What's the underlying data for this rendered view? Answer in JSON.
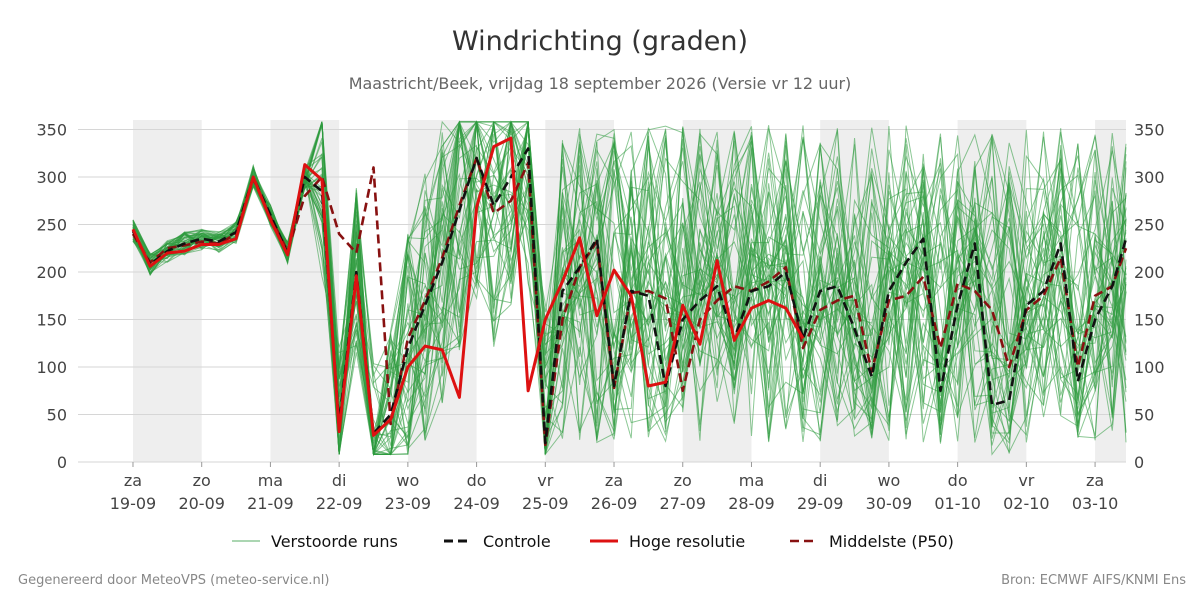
{
  "chart_data": {
    "type": "line",
    "title": "Windrichting (graden)",
    "subtitle": "Maastricht/Beek, vrijdag 18 september 2026 (Versie vr 12 uur)",
    "ylim": [
      0,
      360
    ],
    "yticks": [
      0,
      50,
      100,
      150,
      200,
      250,
      300,
      350
    ],
    "x_range": [
      -0.8,
      14.45
    ],
    "day_labels": [
      {
        "day": "za",
        "date": "19-09"
      },
      {
        "day": "zo",
        "date": "20-09"
      },
      {
        "day": "ma",
        "date": "21-09"
      },
      {
        "day": "di",
        "date": "22-09"
      },
      {
        "day": "wo",
        "date": "23-09"
      },
      {
        "day": "do",
        "date": "24-09"
      },
      {
        "day": "vr",
        "date": "25-09"
      },
      {
        "day": "za",
        "date": "26-09"
      },
      {
        "day": "zo",
        "date": "27-09"
      },
      {
        "day": "ma",
        "date": "28-09"
      },
      {
        "day": "di",
        "date": "29-09"
      },
      {
        "day": "wo",
        "date": "30-09"
      },
      {
        "day": "do",
        "date": "01-10"
      },
      {
        "day": "vr",
        "date": "02-10"
      },
      {
        "day": "za",
        "date": "03-10"
      }
    ],
    "shaded_days": [
      0,
      2,
      4,
      6,
      8,
      10,
      12,
      14
    ],
    "grid": true,
    "legend_position": "bottom",
    "series": [
      {
        "name": "Controle",
        "color": "#111111",
        "dash": "dashed",
        "x": [
          0,
          0.25,
          0.5,
          0.75,
          1,
          1.25,
          1.5,
          1.75,
          2,
          2.25,
          2.5,
          2.75,
          3,
          3.25,
          3.5,
          3.75,
          4,
          4.25,
          4.5,
          4.75,
          5,
          5.25,
          5.5,
          5.75,
          6,
          6.25,
          6.5,
          6.75,
          7,
          7.25,
          7.5,
          7.75,
          8,
          8.25,
          8.5,
          8.75,
          9,
          9.25,
          9.5,
          9.75,
          10,
          10.25,
          10.5,
          10.75,
          11,
          11.25,
          11.5,
          11.75,
          12,
          12.25,
          12.5,
          12.75,
          13,
          13.25,
          13.5,
          13.75,
          14,
          14.25,
          14.45
        ],
        "values": [
          243,
          208,
          222,
          230,
          235,
          232,
          242,
          300,
          260,
          220,
          300,
          285,
          40,
          200,
          30,
          50,
          120,
          165,
          210,
          265,
          320,
          270,
          300,
          330,
          20,
          180,
          205,
          235,
          80,
          180,
          175,
          80,
          150,
          170,
          185,
          130,
          180,
          185,
          200,
          130,
          180,
          185,
          140,
          90,
          180,
          210,
          235,
          75,
          165,
          230,
          60,
          65,
          165,
          180,
          230,
          85,
          150,
          185,
          235
        ]
      },
      {
        "name": "Hoge resolutie",
        "color": "#dd1111",
        "dash": "solid",
        "x": [
          0,
          0.25,
          0.5,
          0.75,
          1,
          1.25,
          1.5,
          1.75,
          2,
          2.25,
          2.5,
          2.75,
          3,
          3.25,
          3.5,
          3.75,
          4,
          4.25,
          4.5,
          4.75,
          5,
          5.25,
          5.5,
          5.75,
          6,
          6.25,
          6.5,
          6.75,
          7,
          7.25,
          7.5,
          7.75,
          8,
          8.25,
          8.5,
          8.75,
          9,
          9.25,
          9.5,
          9.75
        ],
        "values": [
          245,
          206,
          220,
          222,
          229,
          229,
          235,
          300,
          255,
          218,
          313,
          297,
          32,
          196,
          28,
          45,
          100,
          122,
          118,
          68,
          268,
          332,
          341,
          75,
          150,
          190,
          236,
          154,
          202,
          175,
          80,
          84,
          165,
          124,
          212,
          128,
          162,
          170,
          162,
          130
        ]
      },
      {
        "name": "Middelste (P50)",
        "color": "#881111",
        "dash": "dashed",
        "x": [
          0,
          0.25,
          0.5,
          0.75,
          1,
          1.25,
          1.5,
          1.75,
          2,
          2.25,
          2.5,
          2.75,
          3,
          3.25,
          3.5,
          3.75,
          4,
          4.25,
          4.5,
          4.75,
          5,
          5.25,
          5.5,
          5.75,
          6,
          6.25,
          6.5,
          6.75,
          7,
          7.25,
          7.5,
          7.75,
          8,
          8.25,
          8.5,
          8.75,
          9,
          9.25,
          9.5,
          9.75,
          10,
          10.25,
          10.5,
          10.75,
          11,
          11.25,
          11.5,
          11.75,
          12,
          12.25,
          12.5,
          12.75,
          13,
          13.25,
          13.5,
          13.75,
          14,
          14.25,
          14.45
        ],
        "values": [
          240,
          210,
          225,
          228,
          232,
          230,
          240,
          298,
          258,
          222,
          280,
          300,
          240,
          220,
          310,
          40,
          130,
          170,
          215,
          270,
          320,
          262,
          275,
          315,
          18,
          150,
          205,
          232,
          78,
          178,
          180,
          172,
          75,
          150,
          170,
          185,
          180,
          190,
          205,
          120,
          160,
          170,
          175,
          95,
          170,
          175,
          195,
          120,
          188,
          180,
          160,
          100,
          160,
          175,
          215,
          100,
          175,
          185,
          225
        ]
      }
    ],
    "ensemble": {
      "name": "Verstoorde runs",
      "color": "#2e9a3e",
      "runs": 50
    },
    "footer_left": "Gegenereerd door MeteoVPS (meteo-service.nl)",
    "footer_right": "Bron: ECMWF AIFS/KNMI Ens"
  }
}
